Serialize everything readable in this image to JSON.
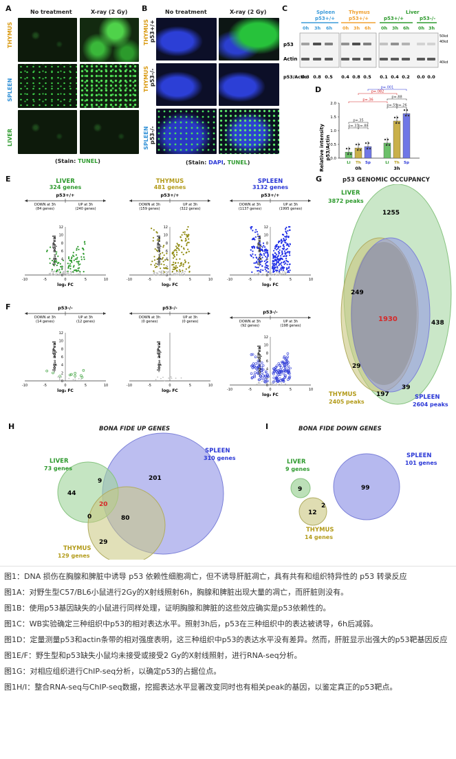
{
  "colors": {
    "liver": "#2e9a2e",
    "thymus": "#b39b1a",
    "spleen": "#2a37d6",
    "red": "#d62828",
    "spleenLight": "#3a9ad9",
    "thymusLight": "#f0a030"
  },
  "panelA": {
    "label": "A",
    "col1": "No treatment",
    "col2": "X-ray (2 Gy)",
    "rows": [
      "THYMUS",
      "SPLEEN",
      "LIVER"
    ],
    "stain_prefix": "(Stain: ",
    "stain": "TUNEL",
    "stain_suffix": ")"
  },
  "panelB": {
    "label": "B",
    "col1": "No treatment",
    "col2": "X-ray (2 Gy)",
    "rows": [
      {
        "tissue": "THYMUS",
        "geno": "p53+/+"
      },
      {
        "tissue": "THYMUS",
        "geno": "p53-/-"
      },
      {
        "tissue": "SPLEEN",
        "geno": "p53-/-"
      }
    ],
    "stain_prefix": "(Stain: ",
    "dapi": "DAPI",
    "comma": ", ",
    "tunel": "TUNEL",
    "stain_suffix": ")"
  },
  "panelC": {
    "label": "C",
    "groups": [
      {
        "name": "Spleen",
        "geno": "p53+/+",
        "lanes": [
          "0h",
          "3h",
          "6h"
        ]
      },
      {
        "name": "Thymus",
        "geno": "p53+/+",
        "lanes": [
          "0h",
          "3h",
          "6h"
        ]
      },
      {
        "name": "Liver",
        "geno": "p53+/+",
        "lanes": [
          "0h",
          "3h",
          "6h"
        ]
      },
      {
        "name": "",
        "geno": "p53-/-",
        "lanes": [
          "0h",
          "3h"
        ]
      }
    ],
    "row_p53": "p53",
    "row_actin": "Actin",
    "ratio_label": "p53/Actin",
    "ratios": [
      "0.3",
      "0.8",
      "0.5",
      "0.4",
      "0.8",
      "0.5",
      "0.1",
      "0.4",
      "0.2",
      "0.0",
      "0.0"
    ],
    "markers": [
      "50kd",
      "40kd",
      "40kd"
    ]
  },
  "panelD": {
    "label": "D",
    "ylabel": "Relative intensity\np53/Actin",
    "yticks": [
      "0.0",
      "0.5",
      "1.0",
      "1.5",
      "2.0"
    ],
    "ymax": 2.0,
    "groups": [
      "0h",
      "3h"
    ],
    "bars": [
      {
        "tissue": "Li",
        "time": "0h",
        "value": 0.22
      },
      {
        "tissue": "Th",
        "time": "0h",
        "value": 0.37
      },
      {
        "tissue": "Sp",
        "time": "0h",
        "value": 0.42
      },
      {
        "tissue": "Li",
        "time": "3h",
        "value": 0.55
      },
      {
        "tissue": "Th",
        "time": "3h",
        "value": 1.35
      },
      {
        "tissue": "Sp",
        "time": "3h",
        "value": 1.62
      }
    ],
    "pvals": [
      "p=.35",
      "p=.37",
      "p=.88",
      "p=.59",
      "p=.26",
      "p=.36",
      "p=.88",
      "p=.082",
      "p=.001"
    ]
  },
  "panelE": {
    "label": "E",
    "plots": [
      {
        "tissue": "LIVER",
        "genes": "324 genes",
        "geno": "p53+/+",
        "down": "DOWN at 3h",
        "up": "UP at 3h",
        "down_n": "(84 genes)",
        "up_n": "(240 genes)"
      },
      {
        "tissue": "THYMUS",
        "genes": "481 genes",
        "geno": "p53+/+",
        "down": "DOWN at 3h",
        "up": "UP at 3h",
        "down_n": "(159 genes)",
        "up_n": "(322 genes)"
      },
      {
        "tissue": "SPLEEN",
        "genes": "3132 genes",
        "geno": "p53+/+",
        "down": "DOWN at 3h",
        "up": "UP at 3h",
        "down_n": "(1137 genes)",
        "up_n": "(1995 genes)"
      }
    ],
    "xlabel": "log₂ FC",
    "ylabel": "-log₁₀ adjPval",
    "xticks": [
      "-10",
      "-5",
      "0",
      "5",
      "10"
    ],
    "yticks": [
      "0",
      "2",
      "4",
      "6",
      "8",
      "10",
      "12"
    ]
  },
  "panelF": {
    "label": "F",
    "plots": [
      {
        "geno": "p53-/-",
        "down": "DOWN at 3h",
        "up": "UP at 3h",
        "down_n": "(14 genes)",
        "up_n": "(12 genes)"
      },
      {
        "geno": "p53-/-",
        "down": "DOWN at 3h",
        "up": "UP at 3h",
        "down_n": "(0 genes)",
        "up_n": "(0 genes)"
      },
      {
        "geno": "p53-/-",
        "down": "DOWN at 3h",
        "up": "UP at 3h",
        "down_n": "(92 genes)",
        "up_n": "(198 genes)"
      }
    ]
  },
  "panelG": {
    "label": "G",
    "title": "p53 GENOMIC OCCUPANCY",
    "liver": "LIVER",
    "liver_peaks": "3872 peaks",
    "thymus": "THYMUS",
    "thymus_peaks": "2405 peaks",
    "spleen": "SPLEEN",
    "spleen_peaks": "2604 peaks",
    "counts": {
      "liver_only": "1255",
      "liver_thymus": "249",
      "all": "1930",
      "liver_spleen": "438",
      "thymus_only": "29",
      "thymus_spleen": "197",
      "spleen_only": "39"
    }
  },
  "panelH": {
    "label": "H",
    "title": "BONA FIDE UP GENES",
    "liver": "LIVER",
    "liver_genes": "73 genes",
    "spleen": "SPLEEN",
    "spleen_genes": "310 genes",
    "thymus": "THYMUS",
    "thymus_genes": "129 genes",
    "counts": {
      "liver_only": "44",
      "liver_spleen": "9",
      "all": "20",
      "liver_thymus": "0",
      "spleen_only": "201",
      "thymus_spleen": "80",
      "thymus_only": "29"
    }
  },
  "panelI": {
    "label": "I",
    "title": "BONA FIDE DOWN GENES",
    "liver": "LIVER",
    "liver_genes": "9 genes",
    "spleen": "SPLEEN",
    "spleen_genes": "101 genes",
    "thymus": "THYMUS",
    "thymus_genes": "14 genes",
    "counts": {
      "liver_only": "9",
      "spleen_only": "99",
      "thymus_only": "12",
      "thymus_spleen": "2"
    }
  },
  "caption": [
    "图1：DNA 损伤在胸腺和脾脏中诱导 p53 依赖性细胞凋亡，但不诱导肝脏凋亡，具有共有和组织特异性的 p53 转录反应",
    "图1A：对野生型C57/BL6小鼠进行2Gy的X射线照射6h，胸腺和脾脏出现大量的凋亡，而肝脏则没有。",
    "图1B：使用p53基因缺失的小鼠进行同样处理，证明胸腺和脾脏的这些效应确实是p53依赖性的。",
    "图1C：WB实验确定三种组织中p53的相对表达水平。照射3h后，p53在三种组织中的表达被诱导，6h后减弱。",
    "图1D：定量测量p53和actin条带的相对强度表明，这三种组织中p53的表达水平没有差异。然而，肝脏显示出强大的p53靶基因反应",
    "图1E/F：野生型和p53缺失小鼠均未接受或接受2 Gy的X射线照射，进行RNA-seq分析。",
    "图1G：对相应组织进行ChIP-seq分析，以确定p53的占据位点。",
    "图1H/I：整合RNA-seq与ChIP-seq数据，挖掘表达水平显著改变同时也有相关peak的基因，以鉴定真正的p53靶点。"
  ]
}
